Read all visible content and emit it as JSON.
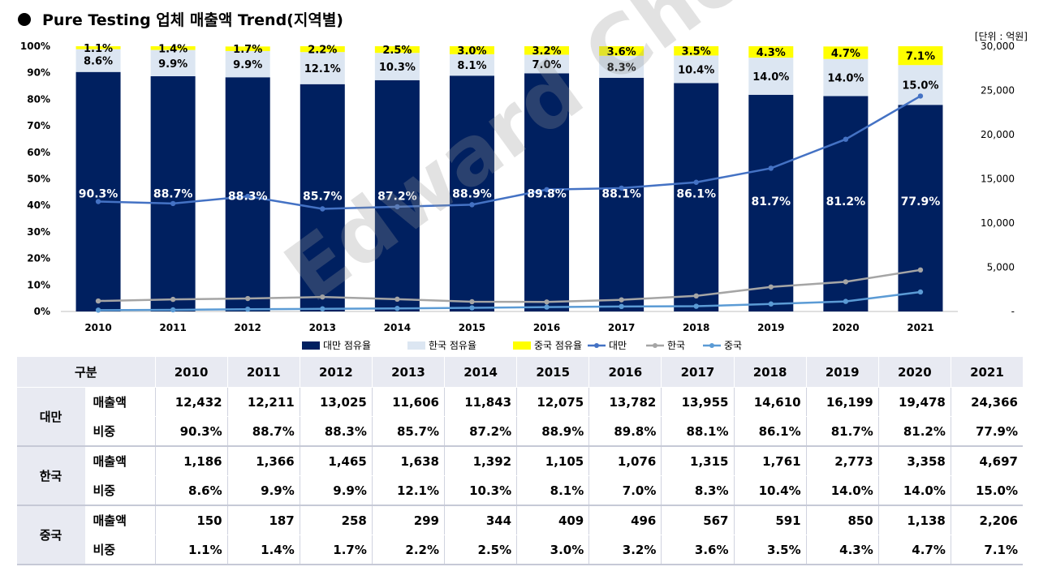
{
  "title": "Pure Testing 업체 매출액 Trend(지역별)",
  "unit_label": "[단위 : 억원]",
  "watermark": "Edward Choi",
  "chart_data": {
    "type": "bar+line",
    "categories": [
      "2010",
      "2011",
      "2012",
      "2013",
      "2014",
      "2015",
      "2016",
      "2017",
      "2018",
      "2019",
      "2020",
      "2021"
    ],
    "stacked_series": [
      {
        "name": "대만 점유율",
        "color": "#002060",
        "values": [
          90.3,
          88.7,
          88.3,
          85.7,
          87.2,
          88.9,
          89.8,
          88.1,
          86.1,
          81.7,
          81.2,
          77.9
        ]
      },
      {
        "name": "한국 점유율",
        "color": "#dce6f2",
        "values": [
          8.6,
          9.9,
          9.9,
          12.1,
          10.3,
          8.1,
          7.0,
          8.3,
          10.4,
          14.0,
          14.0,
          15.0
        ]
      },
      {
        "name": "중국 점유율",
        "color": "#ffff00",
        "values": [
          1.1,
          1.4,
          1.7,
          2.2,
          2.5,
          3.0,
          3.2,
          3.6,
          3.5,
          4.3,
          4.7,
          7.1
        ]
      }
    ],
    "labels": {
      "tw": [
        "90.3%",
        "88.7%",
        "88.3%",
        "85.7%",
        "87.2%",
        "88.9%",
        "89.8%",
        "88.1%",
        "86.1%",
        "81.7%",
        "81.2%",
        "77.9%"
      ],
      "kr": [
        "8.6%",
        "9.9%",
        "9.9%",
        "12.1%",
        "10.3%",
        "8.1%",
        "7.0%",
        "8.3%",
        "10.4%",
        "14.0%",
        "14.0%",
        "15.0%"
      ],
      "cn": [
        "1.1%",
        "1.4%",
        "1.7%",
        "2.2%",
        "2.5%",
        "3.0%",
        "3.2%",
        "3.6%",
        "3.5%",
        "4.3%",
        "4.7%",
        "7.1%"
      ]
    },
    "line_series": [
      {
        "name": "대만",
        "color": "#4472c4",
        "values": [
          12432,
          12211,
          13025,
          11606,
          11843,
          12075,
          13782,
          13955,
          14610,
          16199,
          19478,
          24366
        ]
      },
      {
        "name": "한국",
        "color": "#a5a5a5",
        "values": [
          1186,
          1366,
          1465,
          1638,
          1392,
          1105,
          1076,
          1315,
          1761,
          2773,
          3358,
          4697
        ]
      },
      {
        "name": "중국",
        "color": "#5b9bd5",
        "values": [
          150,
          187,
          258,
          299,
          344,
          409,
          496,
          567,
          591,
          850,
          1138,
          2206
        ]
      }
    ],
    "y_left": {
      "min": 0,
      "max": 100,
      "ticks": [
        "0%",
        "10%",
        "20%",
        "30%",
        "40%",
        "50%",
        "60%",
        "70%",
        "80%",
        "90%",
        "100%"
      ]
    },
    "y_right": {
      "min": 0,
      "max": 30000,
      "ticks": [
        "-",
        "5,000",
        "10,000",
        "15,000",
        "20,000",
        "25,000",
        "30,000"
      ]
    },
    "legend": [
      "대만 점유율",
      "한국 점유율",
      "중국 점유율",
      "대만",
      "한국",
      "중국"
    ],
    "legend_position": "bottom"
  },
  "table": {
    "corner": "구분",
    "years": [
      "2010",
      "2011",
      "2012",
      "2013",
      "2014",
      "2015",
      "2016",
      "2017",
      "2018",
      "2019",
      "2020",
      "2021"
    ],
    "groups": [
      {
        "region": "대만",
        "rows": [
          {
            "metric": "매출액",
            "values": [
              "12,432",
              "12,211",
              "13,025",
              "11,606",
              "11,843",
              "12,075",
              "13,782",
              "13,955",
              "14,610",
              "16,199",
              "19,478",
              "24,366"
            ]
          },
          {
            "metric": "비중",
            "values": [
              "90.3%",
              "88.7%",
              "88.3%",
              "85.7%",
              "87.2%",
              "88.9%",
              "89.8%",
              "88.1%",
              "86.1%",
              "81.7%",
              "81.2%",
              "77.9%"
            ]
          }
        ]
      },
      {
        "region": "한국",
        "rows": [
          {
            "metric": "매출액",
            "values": [
              "1,186",
              "1,366",
              "1,465",
              "1,638",
              "1,392",
              "1,105",
              "1,076",
              "1,315",
              "1,761",
              "2,773",
              "3,358",
              "4,697"
            ]
          },
          {
            "metric": "비중",
            "values": [
              "8.6%",
              "9.9%",
              "9.9%",
              "12.1%",
              "10.3%",
              "8.1%",
              "7.0%",
              "8.3%",
              "10.4%",
              "14.0%",
              "14.0%",
              "15.0%"
            ]
          }
        ]
      },
      {
        "region": "중국",
        "rows": [
          {
            "metric": "매출액",
            "values": [
              "150",
              "187",
              "258",
              "299",
              "344",
              "409",
              "496",
              "567",
              "591",
              "850",
              "1,138",
              "2,206"
            ]
          },
          {
            "metric": "비중",
            "values": [
              "1.1%",
              "1.4%",
              "1.7%",
              "2.2%",
              "2.5%",
              "3.0%",
              "3.2%",
              "3.6%",
              "3.5%",
              "4.3%",
              "4.7%",
              "7.1%"
            ]
          }
        ]
      }
    ]
  }
}
